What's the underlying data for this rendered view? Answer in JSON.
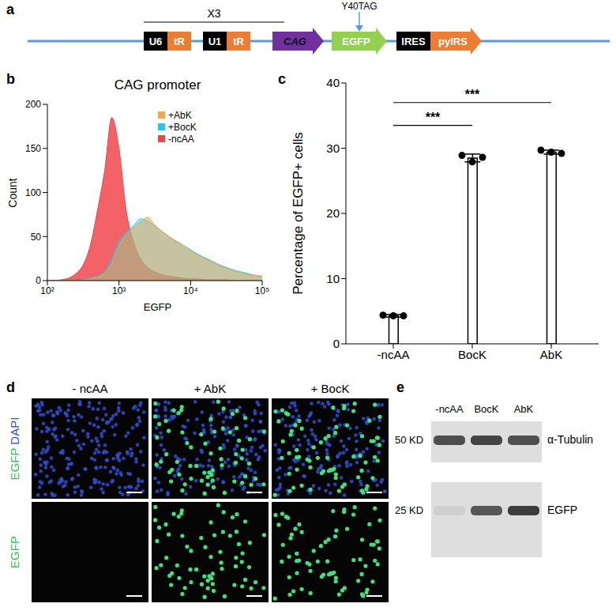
{
  "diagram": {
    "letter": "a",
    "repeat_label": "X3",
    "mutation": "Y40TAG",
    "elements": [
      {
        "label": "U6",
        "shape": "box",
        "color": "#000000"
      },
      {
        "label": "tR",
        "shape": "box",
        "color": "#ed7d31"
      },
      {
        "label": "U1",
        "shape": "box",
        "color": "#000000"
      },
      {
        "label": "tR",
        "shape": "box",
        "color": "#ed7d31"
      },
      {
        "label": "CAG",
        "shape": "arrow",
        "color": "#7030a0"
      },
      {
        "label": "EGFP",
        "shape": "arrow",
        "color": "#92d050"
      },
      {
        "label": "IRES",
        "shape": "box",
        "color": "#000000"
      },
      {
        "label": "pylRS",
        "shape": "arrow",
        "color": "#ed7d31"
      }
    ]
  },
  "chart_data": [
    {
      "letter": "b",
      "type": "area",
      "title": "CAG promoter",
      "x_label": "EGFP",
      "y_label": "Count",
      "log": "x",
      "x": [
        100,
        126,
        158,
        200,
        251,
        316,
        398,
        501,
        631,
        794,
        1000,
        1259,
        1585,
        1995,
        2512,
        3162,
        3981,
        5012,
        6310,
        7943,
        10000,
        12589,
        15849,
        19953,
        25119,
        31623,
        39811,
        50119,
        63096,
        79433,
        100000
      ],
      "series": [
        {
          "name": "+AbK",
          "color": "#f5a54a",
          "values": [
            0,
            0,
            0,
            0,
            0,
            0,
            2,
            4,
            8,
            20,
            40,
            52,
            60,
            66,
            72,
            63,
            56,
            50,
            45,
            40,
            34,
            29,
            25,
            21,
            17,
            14,
            11,
            9,
            7,
            6,
            5
          ]
        },
        {
          "name": "+BocK",
          "color": "#2cc4f0",
          "values": [
            0,
            0,
            0,
            0,
            0,
            1,
            3,
            5,
            10,
            25,
            45,
            55,
            62,
            70,
            68,
            62,
            56,
            50,
            44,
            40,
            35,
            30,
            26,
            22,
            18,
            15,
            12,
            10,
            8,
            6,
            5
          ]
        },
        {
          "name": "-ncAA",
          "color": "#f0464b",
          "values": [
            0,
            0,
            1,
            3,
            8,
            18,
            40,
            80,
            125,
            185,
            150,
            80,
            45,
            25,
            15,
            10,
            7,
            5,
            4,
            3,
            2,
            2,
            1,
            1,
            1,
            1,
            0,
            0,
            0,
            0,
            0
          ]
        }
      ],
      "xlim": [
        100,
        100000
      ],
      "xticks": [
        {
          "value": 100,
          "label": "10²"
        },
        {
          "value": 1000,
          "label": "10³"
        },
        {
          "value": 10000,
          "label": "10⁴"
        },
        {
          "value": 100000,
          "label": "10⁵"
        }
      ],
      "ylim": [
        0,
        200
      ],
      "yticks": [
        0,
        50,
        100,
        150,
        200
      ],
      "grid": false,
      "legend": "top"
    },
    {
      "letter": "c",
      "type": "bar",
      "y_label": "Percentage of EGFP+ cells",
      "categories": [
        "-ncAA",
        "BocK",
        "AbK"
      ],
      "values": [
        4.3,
        28.5,
        29.4
      ],
      "error": [
        0.2,
        0.6,
        0.3
      ],
      "points": [
        [
          4.4,
          4.3,
          4.3
        ],
        [
          28.9,
          27.9,
          28.6
        ],
        [
          29.7,
          29.4,
          29.2
        ]
      ],
      "color": "#ffffff",
      "ylim": [
        0,
        40
      ],
      "yticks": [
        0,
        10,
        20,
        30,
        40
      ],
      "grid": false,
      "annotations": [
        {
          "text": "***",
          "from": "-ncAA",
          "to": "BocK",
          "y": 33.5
        },
        {
          "text": "***",
          "from": "-ncAA",
          "to": "AbK",
          "y": 37
        }
      ]
    }
  ],
  "images": {
    "letter": "d",
    "columns": [
      "- ncAA",
      "+ AbK",
      "+ BocK"
    ],
    "egfp_signal": [
      false,
      true,
      true
    ],
    "rows": [
      [
        {
          "text": "EGFP",
          "color": "#2fc14f"
        },
        {
          "text": "DAPI",
          "color": "#2f4fd0"
        }
      ],
      [
        {
          "text": "EGFP",
          "color": "#2fc14f"
        }
      ]
    ]
  },
  "blot": {
    "letter": "e",
    "lanes": [
      "-ncAA",
      "BocK",
      "AbK"
    ],
    "blots": [
      {
        "label": "α-Tubulin",
        "marker": "50 KD",
        "band_intensity": [
          0.8,
          0.85,
          0.8
        ]
      },
      {
        "label": "EGFP",
        "marker": "25 KD",
        "band_intensity": [
          0.08,
          0.75,
          0.9
        ]
      }
    ]
  }
}
